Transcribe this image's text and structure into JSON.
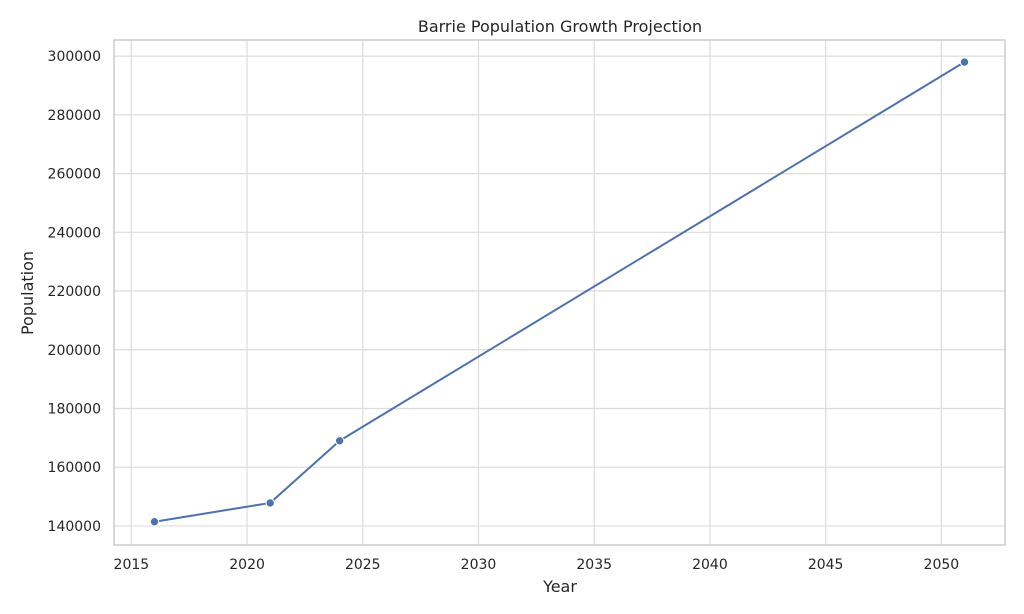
{
  "chart_data": {
    "type": "line",
    "title": "Barrie Population Growth Projection",
    "xlabel": "Year",
    "ylabel": "Population",
    "xlim": [
      2014.25,
      2052.75
    ],
    "ylim": [
      133500,
      305500
    ],
    "x_ticks": [
      2015,
      2020,
      2025,
      2030,
      2035,
      2040,
      2045,
      2050
    ],
    "y_ticks": [
      140000,
      160000,
      180000,
      200000,
      220000,
      240000,
      260000,
      280000,
      300000
    ],
    "grid": true,
    "series": [
      {
        "x": [
          2016,
          2021,
          2024,
          2051
        ],
        "values": [
          141434,
          147829,
          169000,
          298000
        ],
        "color": "#4c72b0",
        "marker": "circle"
      }
    ]
  }
}
